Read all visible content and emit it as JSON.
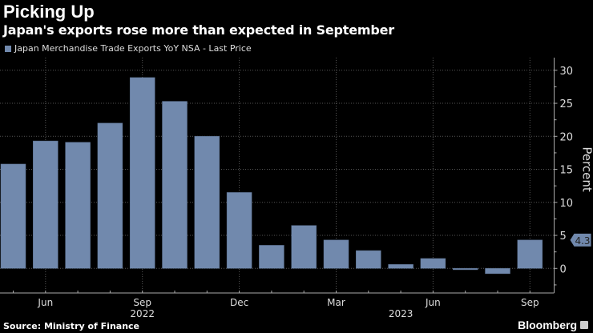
{
  "header": {
    "title": "Picking Up",
    "subtitle": "Japan's exports rose more than expected in September"
  },
  "footer": {
    "source": "Source: Ministry of Finance",
    "brand": "Bloomberg"
  },
  "colors": {
    "bar": "#7189ad",
    "background": "#000000",
    "grid": "#555555"
  },
  "chart_data": {
    "type": "bar",
    "title": "Picking Up",
    "subtitle": "Japan's exports rose more than expected in September",
    "legend": {
      "entries": [
        "Japan Merchandise Trade Exports YoY NSA - Last Price"
      ],
      "placement": "top-left"
    },
    "categories": [
      "May 2022",
      "Jun 2022",
      "Jul 2022",
      "Aug 2022",
      "Sep 2022",
      "Oct 2022",
      "Nov 2022",
      "Dec 2022",
      "Jan 2023",
      "Feb 2023",
      "Mar 2023",
      "Apr 2023",
      "May 2023",
      "Jun 2023",
      "Jul 2023",
      "Aug 2023",
      "Sep 2023"
    ],
    "series": [
      {
        "name": "Japan Merchandise Trade Exports YoY NSA - Last Price",
        "values": [
          15.8,
          19.3,
          19.1,
          22.0,
          28.9,
          25.3,
          20.0,
          11.5,
          3.5,
          6.5,
          4.3,
          2.7,
          0.6,
          1.5,
          -0.2,
          -0.8,
          4.3
        ]
      }
    ],
    "ylabel": "Percent",
    "ylim": [
      -3.8,
      31.5
    ],
    "yticks": [
      0,
      5,
      10,
      15,
      20,
      25,
      30
    ],
    "ytick_labels": [
      "0",
      "5",
      "10",
      "15",
      "20",
      "25",
      "30"
    ],
    "xtick_labels": [
      {
        "label": "Jun",
        "index": 1
      },
      {
        "label": "Sep",
        "index": 4
      },
      {
        "label": "Dec",
        "index": 7
      },
      {
        "label": "Mar",
        "index": 10
      },
      {
        "label": "Jun",
        "index": 13
      },
      {
        "label": "Sep",
        "index": 16
      }
    ],
    "year_labels": [
      {
        "label": "2022",
        "index": 4
      },
      {
        "label": "2023",
        "index": 12
      }
    ],
    "last_value_label": "4.3",
    "grid": true,
    "y_axis_side": "right"
  }
}
